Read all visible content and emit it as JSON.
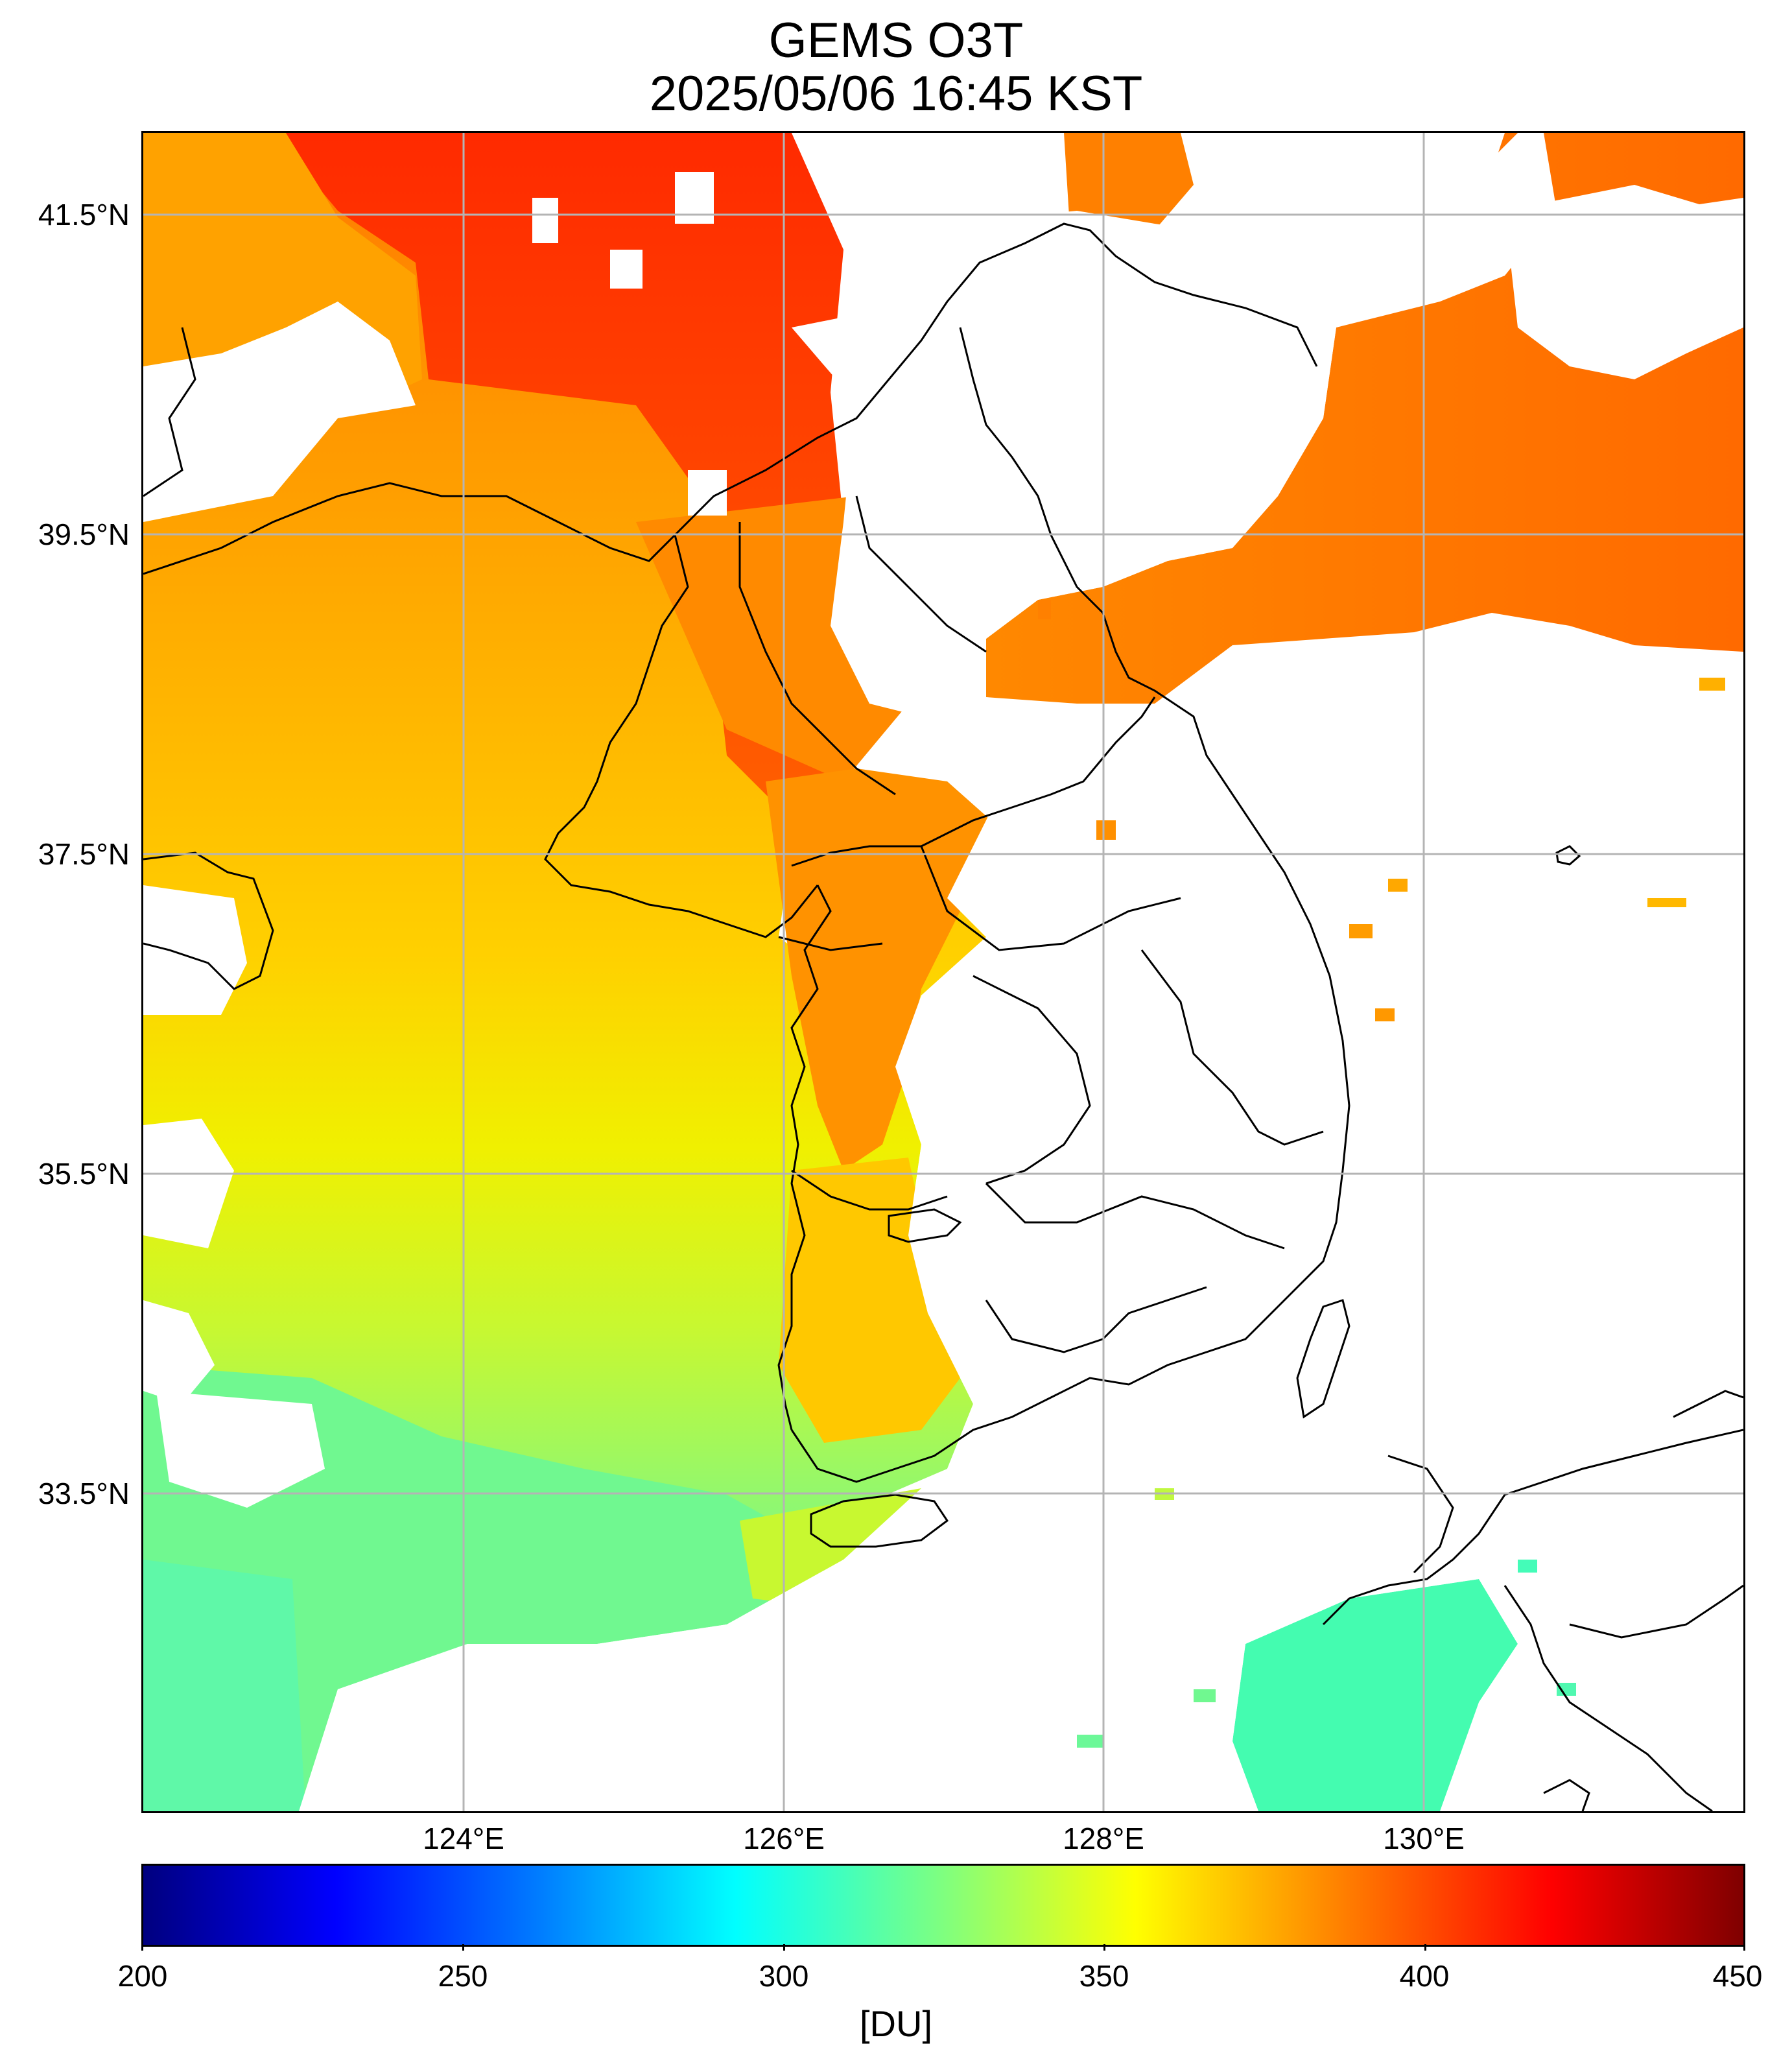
{
  "title": "GEMS O3T",
  "subtitle": "2025/05/06 16:45 KST",
  "map": {
    "extent": {
      "lon_min": 122.0,
      "lon_max": 132.0,
      "lat_min": 31.75,
      "lat_max": 42.0
    },
    "grid_lons": [
      124,
      126,
      128,
      130
    ],
    "grid_lats": [
      33.5,
      35.5,
      37.5,
      39.5,
      41.5
    ],
    "lat_labels": [
      "41.5°N",
      "39.5°N",
      "37.5°N",
      "35.5°N",
      "33.5°N"
    ],
    "lon_labels": [
      "124°E",
      "126°E",
      "128°E",
      "130°E"
    ],
    "grid_color": "#b4b4b4",
    "coastline_color": "#000000",
    "missing_data_color": "#ffffff"
  },
  "colorbar": {
    "min": 200,
    "max": 450,
    "colormap": "jet",
    "tick_labels": [
      "200",
      "250",
      "300",
      "350",
      "400",
      "450"
    ],
    "unit": "[DU]"
  },
  "data_summary": {
    "southwest_sea_range_DU": [
      320,
      340
    ],
    "yellow_sea_center_DU": [
      355,
      370
    ],
    "north_korea_DU": [
      390,
      420
    ],
    "northeast_DU": [
      395,
      410
    ]
  }
}
